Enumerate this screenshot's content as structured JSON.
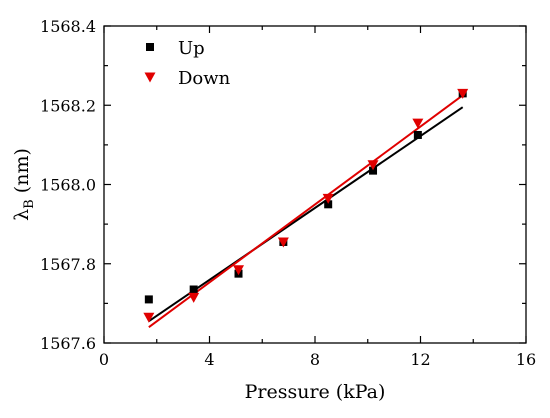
{
  "chart_data": {
    "type": "scatter",
    "xlabel": "Pressure (kPa)",
    "ylabel_main": "λ",
    "ylabel_sub": "B",
    "ylabel_unit": " (nm)",
    "xlim": [
      0,
      16
    ],
    "ylim": [
      1567.6,
      1568.4
    ],
    "x_ticks": [
      0,
      4,
      8,
      12,
      16
    ],
    "x_tick_labels": [
      "0",
      "4",
      "8",
      "12",
      "16"
    ],
    "y_ticks": [
      1567.6,
      1567.8,
      1568.0,
      1568.2,
      1568.4
    ],
    "y_tick_labels": [
      "1567.6",
      "1567.8",
      "1568.0",
      "1568.2",
      "1568.4"
    ],
    "grid": false,
    "legend_position": "top-left",
    "series": [
      {
        "name": "Up",
        "color": "#000000",
        "marker": "square",
        "x": [
          1.7,
          3.4,
          5.1,
          6.8,
          8.5,
          10.2,
          11.9,
          13.6
        ],
        "y": [
          1567.71,
          1567.735,
          1567.775,
          1567.855,
          1567.95,
          1568.035,
          1568.125,
          1568.23
        ],
        "fit": [
          [
            1.7,
            1567.655
          ],
          [
            13.6,
            1568.195
          ]
        ]
      },
      {
        "name": "Down",
        "color": "#e00000",
        "marker": "triangle-down",
        "x": [
          1.7,
          3.4,
          5.1,
          6.8,
          8.5,
          10.2,
          11.9,
          13.6
        ],
        "y": [
          1567.665,
          1567.715,
          1567.785,
          1567.855,
          1567.965,
          1568.05,
          1568.155,
          1568.23
        ],
        "fit": [
          [
            1.7,
            1567.64
          ],
          [
            13.6,
            1568.225
          ]
        ]
      }
    ]
  }
}
